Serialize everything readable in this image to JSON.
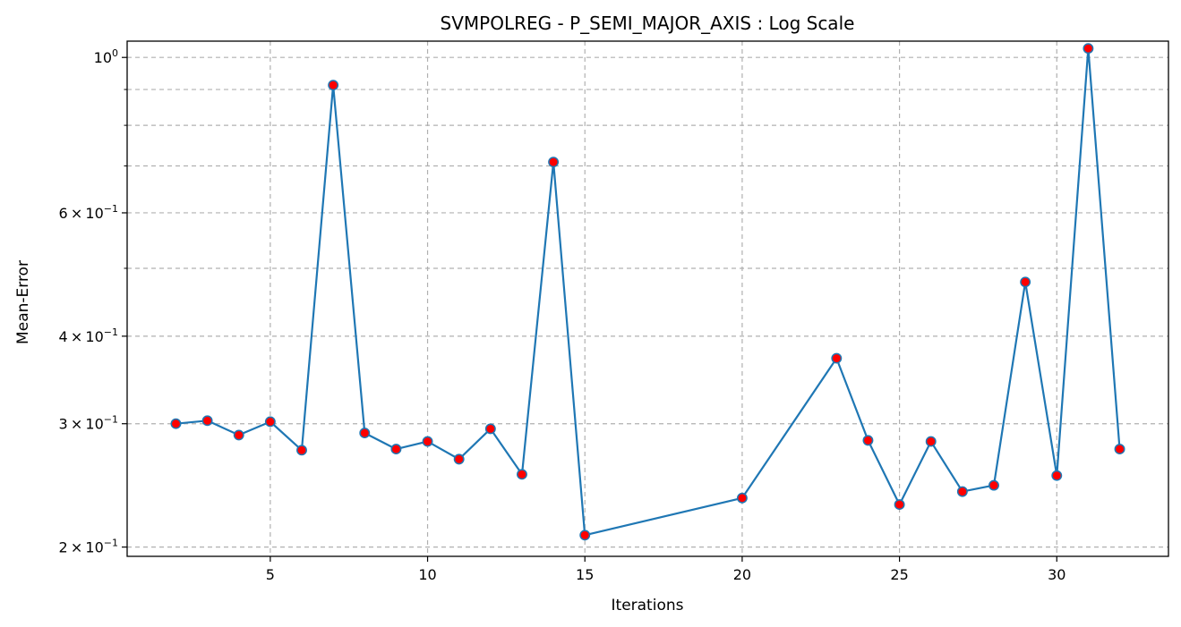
{
  "chart_data": {
    "type": "line",
    "title": "SVMPOLREG - P_SEMI_MAJOR_AXIS : Log Scale",
    "xlabel": "Iterations",
    "ylabel": "Mean-Error",
    "yscale": "log",
    "xlim": [
      0.45,
      33.55
    ],
    "ylim": [
      0.194,
      1.055
    ],
    "grid": true,
    "x_ticks": [
      5,
      10,
      15,
      20,
      25,
      30
    ],
    "x_tick_labels": [
      "5",
      "10",
      "15",
      "20",
      "25",
      "30"
    ],
    "y_major_ticks": [
      0.2,
      0.3,
      0.4,
      0.6,
      1.0
    ],
    "y_tick_labels": [
      {
        "mantissa": "2",
        "exp": "−1"
      },
      {
        "mantissa": "3",
        "exp": "−1"
      },
      {
        "mantissa": "4",
        "exp": "−1"
      },
      {
        "mantissa": "6",
        "exp": "−1"
      },
      {
        "mantissa": "",
        "exp": "0"
      }
    ],
    "y_minor_grid": [
      0.5,
      0.7,
      0.8,
      0.9
    ],
    "line_color": "#1f77b4",
    "marker_face_color": "#ff0000",
    "marker_edge_color": "#1f77b4",
    "series": [
      {
        "x": [
          2,
          3,
          4,
          5,
          6,
          7,
          8,
          9,
          10,
          11,
          12,
          13,
          14,
          15,
          20,
          23,
          24,
          25,
          26,
          27,
          28,
          29,
          30,
          31,
          32
        ],
        "values": [
          0.3,
          0.303,
          0.289,
          0.302,
          0.275,
          0.913,
          0.291,
          0.276,
          0.283,
          0.267,
          0.295,
          0.254,
          0.709,
          0.208,
          0.235,
          0.372,
          0.284,
          0.23,
          0.283,
          0.24,
          0.245,
          0.478,
          0.253,
          1.03,
          0.276
        ]
      }
    ]
  }
}
